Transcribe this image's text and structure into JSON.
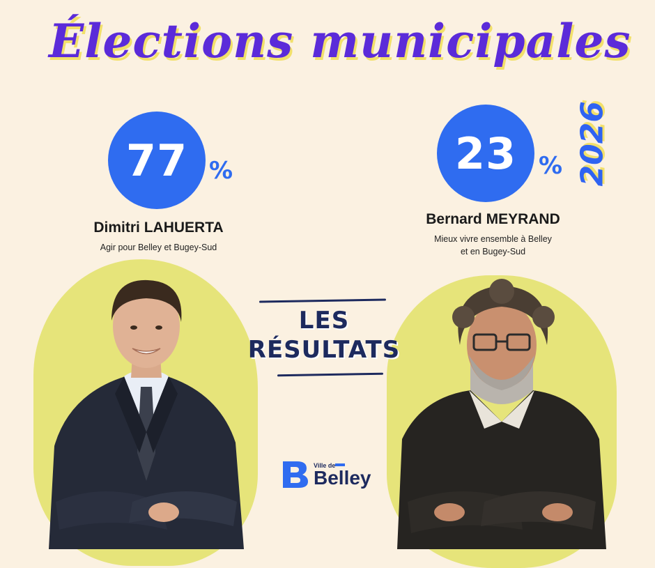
{
  "header": {
    "title": "Élections municipales",
    "year": "2026"
  },
  "candidates": [
    {
      "percent": "77",
      "percent_sign": "%",
      "name": "Dimitri LAHUERTA",
      "list_line1": "Agir pour Belley et Bugey-Sud",
      "list_line2": ""
    },
    {
      "percent": "23",
      "percent_sign": "%",
      "name": "Bernard MEYRAND",
      "list_line1": "Mieux vivre ensemble à Belley",
      "list_line2": "et en Bugey-Sud"
    }
  ],
  "results": {
    "line1": "LES",
    "line2": "RÉSULTATS"
  },
  "logo": {
    "small": "Ville de",
    "big": "Belley"
  },
  "colors": {
    "background": "#fbf1e1",
    "title": "#5b2bd9",
    "accent_blue": "#2f6cf0",
    "highlight_yellow": "#e6e47a",
    "navy": "#1d2a5e"
  }
}
